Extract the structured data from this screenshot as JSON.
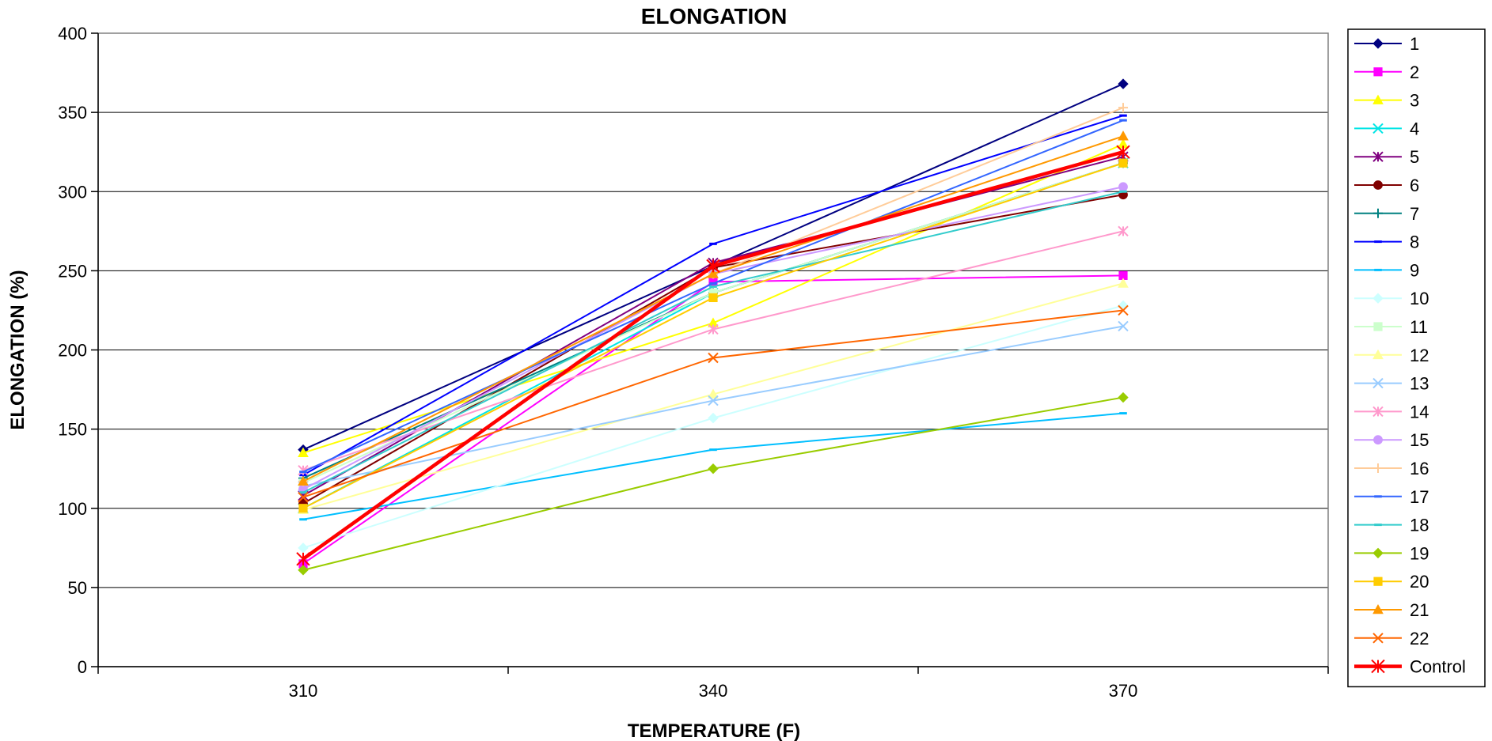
{
  "chart_data": {
    "type": "line",
    "title": "ELONGATION",
    "xlabel": "TEMPERATURE (F)",
    "ylabel": "ELONGATION (%)",
    "categories": [
      "310",
      "340",
      "370"
    ],
    "ylim": [
      0,
      400
    ],
    "yticks": [
      0,
      50,
      100,
      150,
      200,
      250,
      300,
      350,
      400
    ],
    "grid": "horizontal",
    "legend_position": "right",
    "series": [
      {
        "name": "1",
        "color": "#000080",
        "marker": "diamond",
        "values": [
          137,
          253,
          368
        ]
      },
      {
        "name": "2",
        "color": "#FF00FF",
        "marker": "square",
        "values": [
          65,
          243,
          247
        ]
      },
      {
        "name": "3",
        "color": "#FFFF00",
        "marker": "triangle",
        "values": [
          135,
          217,
          330
        ]
      },
      {
        "name": "4",
        "color": "#00E5E5",
        "marker": "x",
        "values": [
          100,
          236,
          318
        ]
      },
      {
        "name": "5",
        "color": "#800080",
        "marker": "star",
        "values": [
          108,
          255,
          322
        ]
      },
      {
        "name": "6",
        "color": "#800000",
        "marker": "circle",
        "values": [
          103,
          252,
          298
        ]
      },
      {
        "name": "7",
        "color": "#008080",
        "marker": "plus",
        "values": [
          119,
          236,
          318
        ]
      },
      {
        "name": "8",
        "color": "#0000FF",
        "marker": "dash",
        "values": [
          121,
          267,
          348
        ]
      },
      {
        "name": "9",
        "color": "#00BFFF",
        "marker": "dash",
        "values": [
          93,
          137,
          160
        ]
      },
      {
        "name": "10",
        "color": "#CCFFFF",
        "marker": "diamond",
        "values": [
          75,
          157,
          228
        ]
      },
      {
        "name": "11",
        "color": "#CCFFCC",
        "marker": "square",
        "values": [
          116,
          236,
          318
        ]
      },
      {
        "name": "12",
        "color": "#FFFF99",
        "marker": "triangle",
        "values": [
          99,
          172,
          242
        ]
      },
      {
        "name": "13",
        "color": "#99CCFF",
        "marker": "x",
        "values": [
          114,
          168,
          215
        ]
      },
      {
        "name": "14",
        "color": "#FF99CC",
        "marker": "star",
        "values": [
          124,
          213,
          275
        ]
      },
      {
        "name": "15",
        "color": "#CC99FF",
        "marker": "circle",
        "values": [
          112,
          248,
          303
        ]
      },
      {
        "name": "16",
        "color": "#FFCC99",
        "marker": "plus",
        "values": [
          117,
          248,
          353
        ]
      },
      {
        "name": "17",
        "color": "#3366FF",
        "marker": "dash",
        "values": [
          123,
          242,
          345
        ]
      },
      {
        "name": "18",
        "color": "#33CCCC",
        "marker": "dash",
        "values": [
          110,
          240,
          300
        ]
      },
      {
        "name": "19",
        "color": "#99CC00",
        "marker": "diamond",
        "values": [
          61,
          125,
          170
        ]
      },
      {
        "name": "20",
        "color": "#FFCC00",
        "marker": "square",
        "values": [
          100,
          233,
          318
        ]
      },
      {
        "name": "21",
        "color": "#FF9900",
        "marker": "triangle",
        "values": [
          117,
          248,
          335
        ]
      },
      {
        "name": "22",
        "color": "#FF6600",
        "marker": "x",
        "values": [
          107,
          195,
          225
        ]
      },
      {
        "name": "Control",
        "color": "#FF0000",
        "marker": "star",
        "values": [
          68,
          253,
          325
        ],
        "bold": true
      }
    ]
  }
}
